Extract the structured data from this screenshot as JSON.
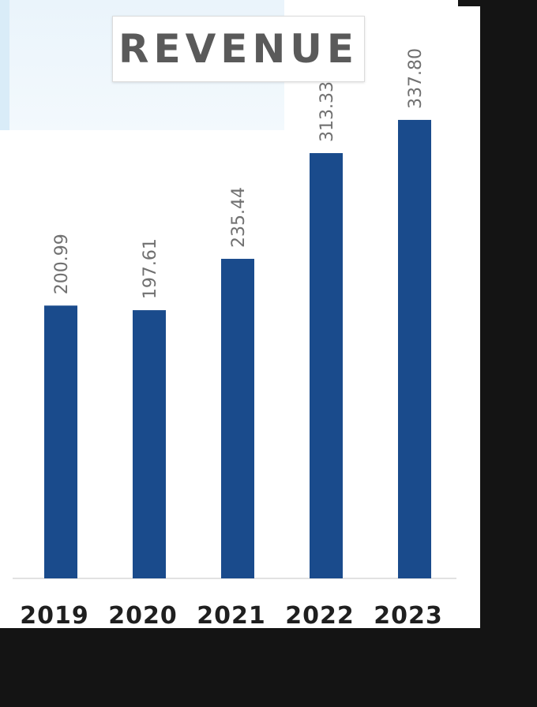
{
  "chart_data": {
    "type": "bar",
    "title": "REVENUE",
    "categories": [
      "2019",
      "2020",
      "2021",
      "2022",
      "2023"
    ],
    "values": [
      200.99,
      197.61,
      235.44,
      313.33,
      337.8
    ],
    "value_labels": [
      "200.99",
      "197.61",
      "235.44",
      "313.33",
      "337.80"
    ],
    "xlabel": "",
    "ylabel": "",
    "ylim": [
      0,
      368
    ],
    "grid": false,
    "bar_color": "#1a4b8c"
  }
}
